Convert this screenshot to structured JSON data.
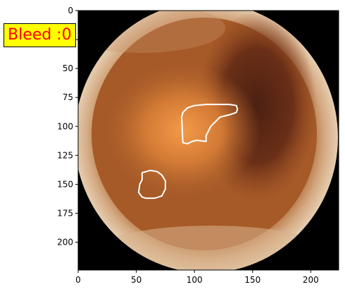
{
  "badge": {
    "text": "Bleed :0",
    "bg": "#ffff00",
    "fg": "#ff0000"
  },
  "axes": {
    "xlim": [
      0,
      224
    ],
    "ylim": [
      224,
      0
    ],
    "xticks": [
      0,
      50,
      100,
      150,
      200
    ],
    "yticks": [
      0,
      25,
      50,
      75,
      100,
      125,
      150,
      175,
      200
    ]
  },
  "image": {
    "subject": "capsule endoscopy frame",
    "background": "#000000"
  },
  "regions": [
    {
      "name": "region-1",
      "color": "#ffffff",
      "points": [
        [
          90,
          114
        ],
        [
          89,
          92
        ],
        [
          90,
          88
        ],
        [
          94,
          84
        ],
        [
          100,
          82
        ],
        [
          110,
          81
        ],
        [
          130,
          81
        ],
        [
          136,
          82
        ],
        [
          137,
          85
        ],
        [
          136,
          88
        ],
        [
          130,
          90
        ],
        [
          122,
          92
        ],
        [
          114,
          100
        ],
        [
          110,
          108
        ],
        [
          110,
          113
        ],
        [
          102,
          112
        ],
        [
          98,
          113
        ],
        [
          94,
          115
        ]
      ]
    },
    {
      "name": "region-2",
      "color": "#ffffff",
      "points": [
        [
          55,
          140
        ],
        [
          62,
          138
        ],
        [
          68,
          139
        ],
        [
          72,
          142
        ],
        [
          75,
          147
        ],
        [
          75,
          154
        ],
        [
          72,
          160
        ],
        [
          66,
          162
        ],
        [
          58,
          162
        ],
        [
          55,
          161
        ],
        [
          52,
          157
        ],
        [
          53,
          150
        ],
        [
          55,
          146
        ]
      ]
    }
  ]
}
